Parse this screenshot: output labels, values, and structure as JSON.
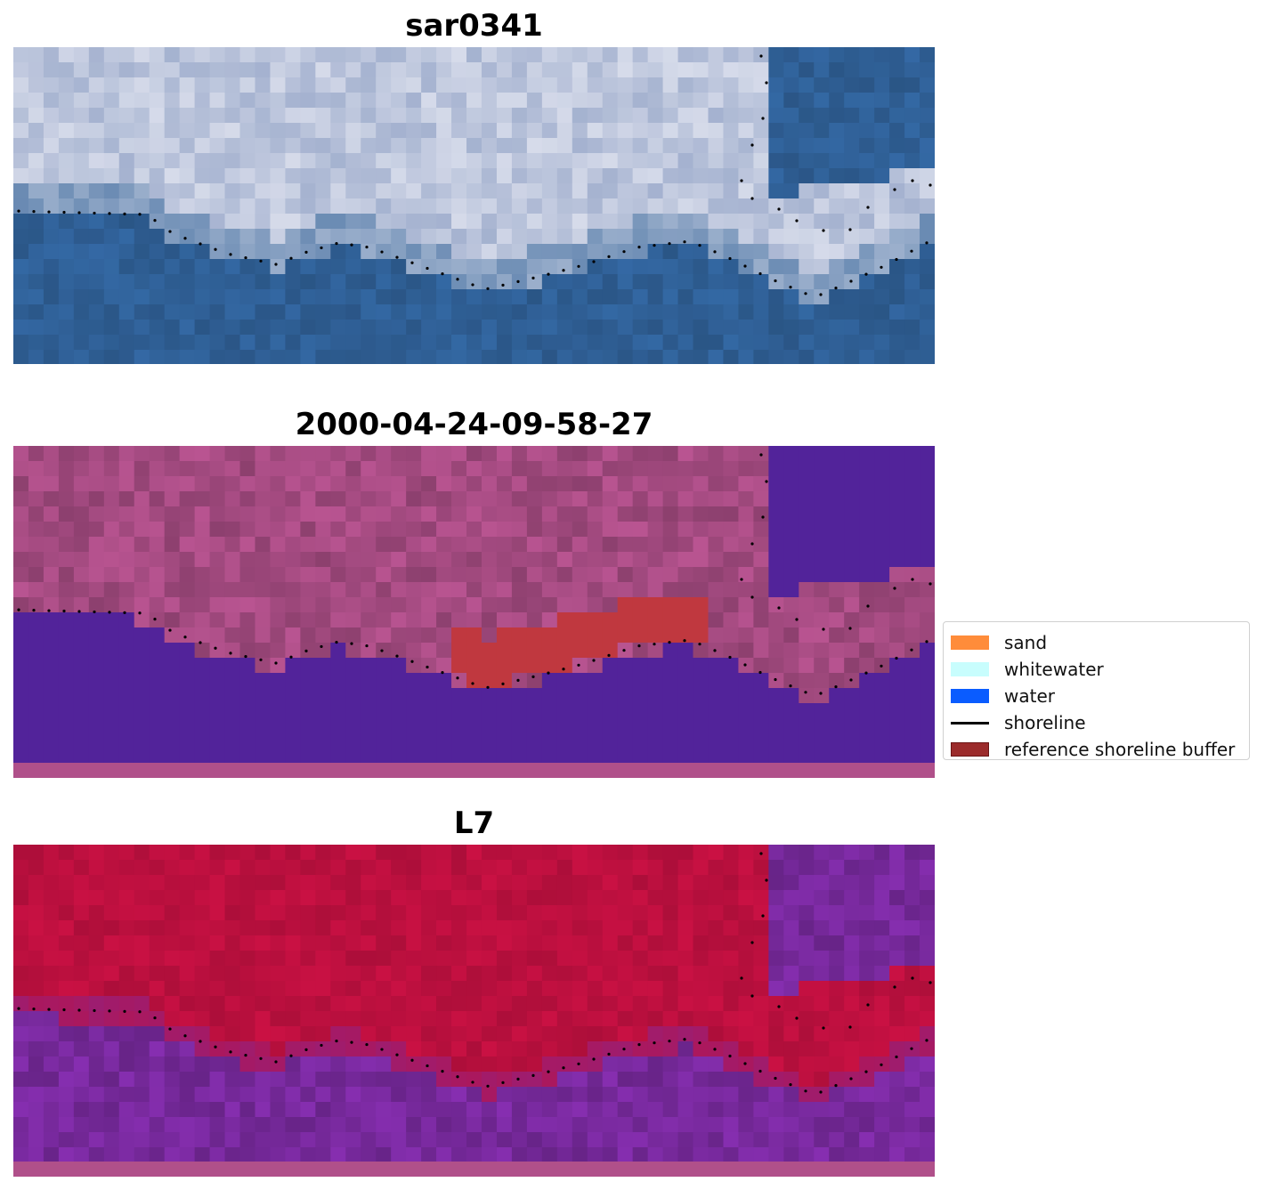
{
  "panels": [
    {
      "title": "sar0341",
      "style": "rgb"
    },
    {
      "title": "2000-04-24-09-58-27",
      "style": "classified"
    },
    {
      "title": "L7",
      "style": "index"
    }
  ],
  "legend": {
    "items": [
      {
        "label": "sand",
        "color": "#ff8c3a",
        "kind": "patch"
      },
      {
        "label": "whitewater",
        "color": "#c8fdfd",
        "kind": "patch"
      },
      {
        "label": "water",
        "color": "#0a5cff",
        "kind": "patch"
      },
      {
        "label": "shoreline",
        "color": "#000000",
        "kind": "line"
      },
      {
        "label": "reference shoreline buffer",
        "color": "#9b2b2b",
        "kind": "patch-border"
      }
    ]
  },
  "colors": {
    "classified_water": "#52239a",
    "classified_land": "#b0508a",
    "classified_buffer": "#c0383f",
    "index_land": "#c01040",
    "index_water": "#7a2aa0",
    "rgb_water": "#2f5f95",
    "rgb_cloud": "#d6dbea"
  }
}
